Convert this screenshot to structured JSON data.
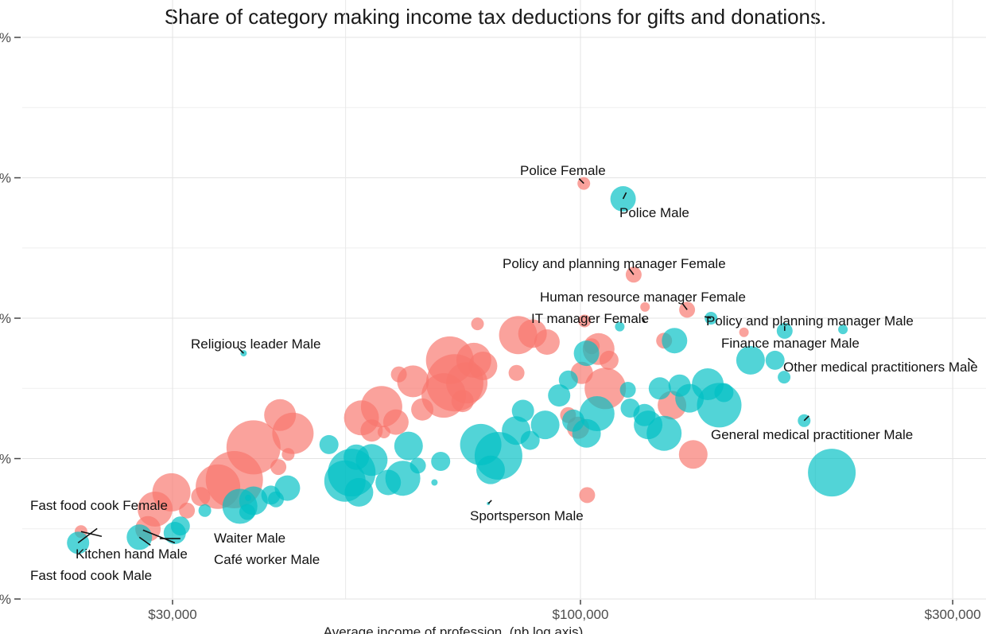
{
  "chart_data": {
    "type": "scatter",
    "subtitle": "Share of category making income tax deductions for gifts and donations.",
    "xlabel": "Average income of profession, (nb log axis)",
    "x_scale": "log",
    "xlim": [
      19000,
      320000
    ],
    "ylim": [
      0.0,
      0.4
    ],
    "x_ticks": [
      {
        "value": 30000,
        "label": "$30,000"
      },
      {
        "value": 100000,
        "label": "$100,000"
      },
      {
        "value": 300000,
        "label": "$300,000"
      }
    ],
    "y_ticks": [
      {
        "value": 0.0,
        "label": "%"
      },
      {
        "value": 0.1,
        "label": "%"
      },
      {
        "value": 0.2,
        "label": "%"
      },
      {
        "value": 0.3,
        "label": "%"
      },
      {
        "value": 0.4,
        "label": "%"
      }
    ],
    "grid": true,
    "colors": {
      "Female": "#F8766D",
      "Male": "#00BFC4",
      "grid": "#e3e3e3"
    },
    "series": [
      {
        "sex": "Female",
        "points": [
          [
            22900,
            0.048,
            8
          ],
          [
            27900,
            0.05,
            16
          ],
          [
            28500,
            0.064,
            22
          ],
          [
            29900,
            0.076,
            24
          ],
          [
            32600,
            0.073,
            12
          ],
          [
            31300,
            0.063,
            10
          ],
          [
            34300,
            0.08,
            28
          ],
          [
            36000,
            0.085,
            36
          ],
          [
            38100,
            0.108,
            34
          ],
          [
            41200,
            0.131,
            20
          ],
          [
            42800,
            0.118,
            26
          ],
          [
            41000,
            0.094,
            10
          ],
          [
            42200,
            0.103,
            8
          ],
          [
            52400,
            0.129,
            22
          ],
          [
            55600,
            0.137,
            26
          ],
          [
            58000,
            0.126,
            16
          ],
          [
            54000,
            0.12,
            14
          ],
          [
            61000,
            0.155,
            20
          ],
          [
            62700,
            0.135,
            14
          ],
          [
            58500,
            0.16,
            10
          ],
          [
            56000,
            0.119,
            8
          ],
          [
            68000,
            0.17,
            30
          ],
          [
            66800,
            0.145,
            28
          ],
          [
            71500,
            0.154,
            26
          ],
          [
            73000,
            0.17,
            22
          ],
          [
            75000,
            0.166,
            18
          ],
          [
            70600,
            0.141,
            14
          ],
          [
            73800,
            0.196,
            8
          ],
          [
            69000,
            0.154,
            36
          ],
          [
            83200,
            0.188,
            24
          ],
          [
            86800,
            0.189,
            18
          ],
          [
            90600,
            0.183,
            16
          ],
          [
            82800,
            0.161,
            10
          ],
          [
            100400,
            0.161,
            14
          ],
          [
            103400,
            0.18,
            10
          ],
          [
            101200,
            0.198,
            8
          ],
          [
            105500,
            0.178,
            20
          ],
          [
            108800,
            0.17,
            12
          ],
          [
            107600,
            0.15,
            26
          ],
          [
            96400,
            0.131,
            10
          ],
          [
            99300,
            0.122,
            14
          ],
          [
            131000,
            0.138,
            18
          ],
          [
            128000,
            0.184,
            10
          ],
          [
            139500,
            0.103,
            18
          ],
          [
            102000,
            0.074,
            10
          ],
          [
            101000,
            0.296,
            8
          ],
          [
            117000,
            0.231,
            10
          ],
          [
            137000,
            0.206,
            10
          ],
          [
            121000,
            0.208,
            6
          ],
          [
            162000,
            0.19,
            6
          ]
        ]
      },
      {
        "sex": "Male",
        "points": [
          [
            22700,
            0.04,
            14
          ],
          [
            27200,
            0.044,
            16
          ],
          [
            30200,
            0.047,
            14
          ],
          [
            30700,
            0.052,
            12
          ],
          [
            33000,
            0.063,
            8
          ],
          [
            36600,
            0.066,
            22
          ],
          [
            38100,
            0.07,
            18
          ],
          [
            40100,
            0.074,
            12
          ],
          [
            37400,
            0.062,
            10
          ],
          [
            42100,
            0.079,
            16
          ],
          [
            40700,
            0.071,
            10
          ],
          [
            49900,
            0.084,
            26
          ],
          [
            50900,
            0.09,
            30
          ],
          [
            52000,
            0.076,
            18
          ],
          [
            56700,
            0.083,
            16
          ],
          [
            59200,
            0.086,
            22
          ],
          [
            47600,
            0.11,
            12
          ],
          [
            51600,
            0.101,
            16
          ],
          [
            54000,
            0.099,
            20
          ],
          [
            60200,
            0.109,
            18
          ],
          [
            66200,
            0.098,
            12
          ],
          [
            61900,
            0.095,
            10
          ],
          [
            76700,
            0.092,
            18
          ],
          [
            74500,
            0.11,
            26
          ],
          [
            78500,
            0.102,
            30
          ],
          [
            82700,
            0.12,
            18
          ],
          [
            84400,
            0.134,
            14
          ],
          [
            86200,
            0.113,
            12
          ],
          [
            90100,
            0.124,
            18
          ],
          [
            93900,
            0.145,
            14
          ],
          [
            97900,
            0.127,
            14
          ],
          [
            101800,
            0.118,
            18
          ],
          [
            105000,
            0.132,
            22
          ],
          [
            96500,
            0.156,
            12
          ],
          [
            101800,
            0.175,
            16
          ],
          [
            115000,
            0.149,
            10
          ],
          [
            115800,
            0.136,
            12
          ],
          [
            120800,
            0.131,
            14
          ],
          [
            122100,
            0.124,
            18
          ],
          [
            128000,
            0.118,
            22
          ],
          [
            126400,
            0.15,
            14
          ],
          [
            134000,
            0.152,
            14
          ],
          [
            138000,
            0.143,
            18
          ],
          [
            145600,
            0.153,
            20
          ],
          [
            150600,
            0.138,
            28
          ],
          [
            152700,
            0.147,
            12
          ],
          [
            165200,
            0.17,
            18
          ],
          [
            177600,
            0.17,
            12
          ],
          [
            182400,
            0.158,
            8
          ],
          [
            182700,
            0.191,
            10
          ],
          [
            193500,
            0.127,
            8
          ],
          [
            210000,
            0.09,
            30
          ],
          [
            217000,
            0.192,
            6
          ],
          [
            132000,
            0.184,
            16
          ],
          [
            112300,
            0.194,
            6
          ],
          [
            113400,
            0.285,
            16
          ],
          [
            147000,
            0.2,
            8
          ],
          [
            37000,
            0.175,
            4
          ],
          [
            76200,
            0.068,
            2
          ],
          [
            65000,
            0.083,
            4
          ],
          [
            37500,
            0.072,
            4
          ]
        ]
      }
    ],
    "annotations": [
      {
        "label": "Police Female",
        "x": 101000,
        "y": 0.296
      },
      {
        "label": "Police Male",
        "x": 113400,
        "y": 0.285
      },
      {
        "label": "Policy and planning manager Female",
        "x": 117000,
        "y": 0.231
      },
      {
        "label": "Human resource manager Female",
        "x": 137000,
        "y": 0.206
      },
      {
        "label": "IT manager Female",
        "x": 121000,
        "y": 0.197
      },
      {
        "label": "Policy and planning manager Male",
        "x": 147000,
        "y": 0.2
      },
      {
        "label": "Religious leader Male",
        "x": 37000,
        "y": 0.175
      },
      {
        "label": "Finance manager Male",
        "x": 182700,
        "y": 0.191
      },
      {
        "label": "Other medical practitioners Male",
        "x": 320000,
        "y": 0.168
      },
      {
        "label": "General medical practitioner Male",
        "x": 193500,
        "y": 0.127
      },
      {
        "label": "Sportsperson Male",
        "x": 76200,
        "y": 0.068
      },
      {
        "label": "Fast food cook Female",
        "x": 22900,
        "y": 0.048
      },
      {
        "label": "Kitchen hand Male",
        "x": 27200,
        "y": 0.044
      },
      {
        "label": "Waiter Male",
        "x": 30700,
        "y": 0.043
      },
      {
        "label": "Café worker Male",
        "x": 30200,
        "y": 0.04
      },
      {
        "label": "Fast food cook Male",
        "x": 22700,
        "y": 0.04
      }
    ]
  }
}
